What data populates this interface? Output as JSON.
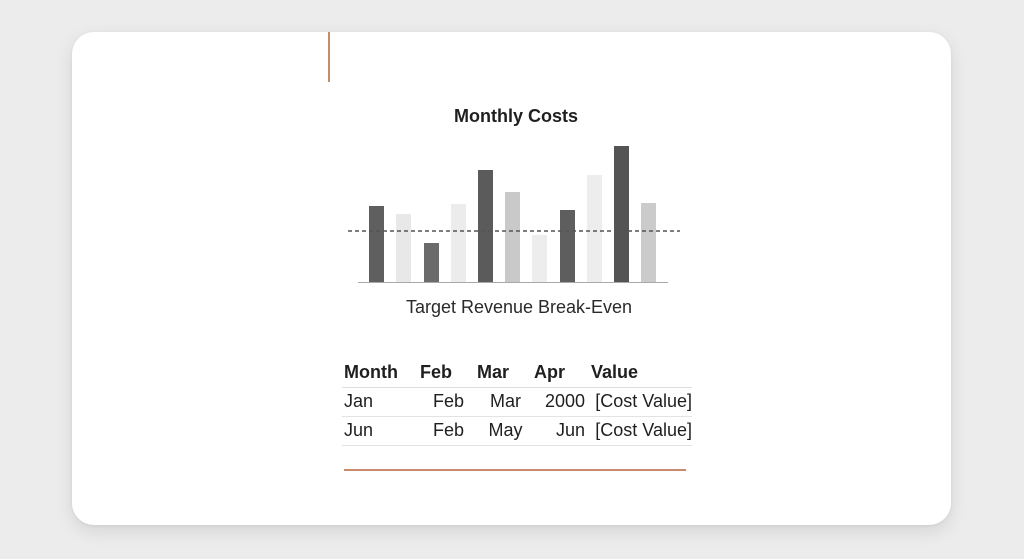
{
  "chart_data": {
    "type": "bar",
    "title": "Monthly Costs",
    "caption": "Target Revenue Break-Even",
    "values": [
      76,
      68,
      39,
      78,
      112,
      90,
      47,
      72,
      107,
      136,
      79
    ],
    "bar_shades": [
      "#5f5f5f",
      "#e8e8e8",
      "#6b6b6b",
      "#ececec",
      "#5b5b5b",
      "#c9c9c9",
      "#ededed",
      "#5e5e5e",
      "#ededed",
      "#545454",
      "#cbcbcb"
    ],
    "threshold": 51,
    "ylim": [
      0,
      140
    ],
    "grid": false,
    "legend": "none"
  },
  "table": {
    "headers": [
      "Month",
      "Feb",
      "Mar",
      "Apr",
      "Value"
    ],
    "rows": [
      [
        "Jan",
        "Feb",
        "Mar",
        "2000",
        "[Cost Value]"
      ],
      [
        "Jun",
        "Feb",
        "May",
        "Jun",
        "[Cost Value]"
      ]
    ]
  },
  "colors": {
    "accent": "#c98a6e",
    "card": "#ffffff",
    "background": "#ececed"
  }
}
